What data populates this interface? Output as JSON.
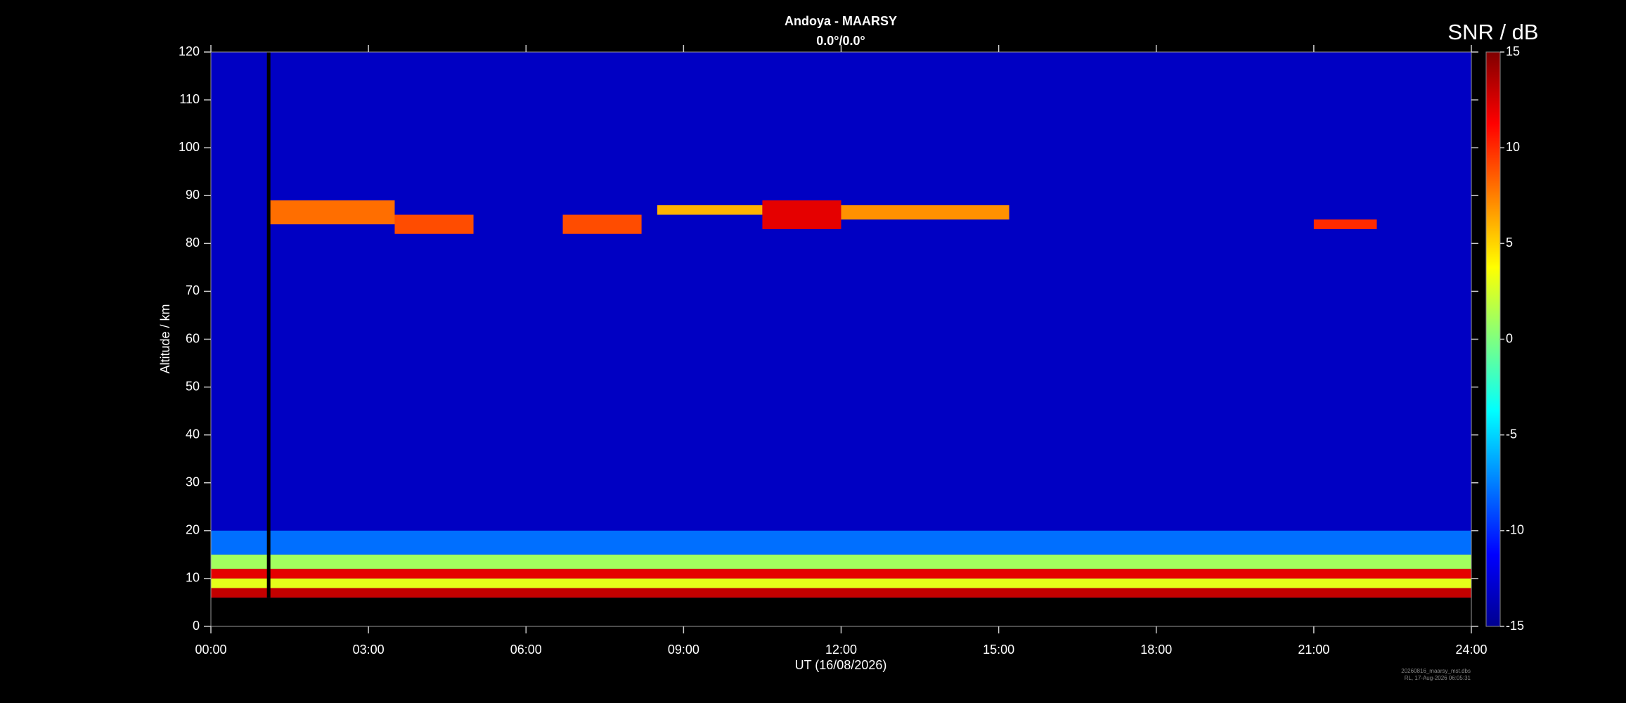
{
  "chart_data": {
    "type": "heatmap",
    "title": "Andoya - MAARSY",
    "subtitle": "0.0°/0.0°",
    "x_label": "UT (16/08/2026)",
    "y_label": "Altitude / km",
    "colorbar_label": "SNR / dB",
    "file_note": "20260816_maarsy_mst.dbs",
    "time_note": "RL, 17-Aug-2026 06:05:31",
    "xlim": [
      0,
      24
    ],
    "xticks": [
      {
        "value": 0,
        "label": "00:00"
      },
      {
        "value": 3,
        "label": "03:00"
      },
      {
        "value": 6,
        "label": "06:00"
      },
      {
        "value": 9,
        "label": "09:00"
      },
      {
        "value": 12,
        "label": "12:00"
      },
      {
        "value": 15,
        "label": "15:00"
      },
      {
        "value": 18,
        "label": "18:00"
      },
      {
        "value": 21,
        "label": "21:00"
      },
      {
        "value": 24,
        "label": "24:00"
      }
    ],
    "ylim": [
      0,
      120
    ],
    "yticks": [
      0,
      10,
      20,
      30,
      40,
      50,
      60,
      70,
      80,
      90,
      100,
      110,
      120
    ],
    "zlim": [
      -15,
      15
    ],
    "zticks": [
      -15,
      -10,
      -5,
      0,
      5,
      10,
      15
    ],
    "colormap": "jet",
    "regions": [
      {
        "start": 0,
        "end": 24,
        "bottom": 6,
        "top": 120,
        "snr": -13
      },
      {
        "start": 0,
        "end": 24,
        "bottom": 15,
        "top": 20,
        "snr": -8
      },
      {
        "start": 0,
        "end": 24,
        "bottom": 12,
        "top": 15,
        "snr": 1
      },
      {
        "start": 0,
        "end": 24,
        "bottom": 10,
        "top": 12,
        "snr": 12
      },
      {
        "start": 0,
        "end": 24,
        "bottom": 8,
        "top": 10,
        "snr": 3
      },
      {
        "start": 0,
        "end": 24,
        "bottom": 6,
        "top": 8,
        "snr": 13
      },
      {
        "start": 1.1,
        "end": 3.5,
        "bottom": 84,
        "top": 89,
        "snr": 8
      },
      {
        "start": 3.5,
        "end": 5,
        "bottom": 82,
        "top": 86,
        "snr": 9
      },
      {
        "start": 6.7,
        "end": 8.2,
        "bottom": 82,
        "top": 86,
        "snr": 9
      },
      {
        "start": 8.5,
        "end": 10.5,
        "bottom": 86,
        "top": 88,
        "snr": 6
      },
      {
        "start": 10.5,
        "end": 12,
        "bottom": 83,
        "top": 89,
        "snr": 12
      },
      {
        "start": 12,
        "end": 15.2,
        "bottom": 85,
        "top": 88,
        "snr": 7
      },
      {
        "start": 21,
        "end": 22.2,
        "bottom": 83,
        "top": 85,
        "snr": 10
      }
    ]
  }
}
